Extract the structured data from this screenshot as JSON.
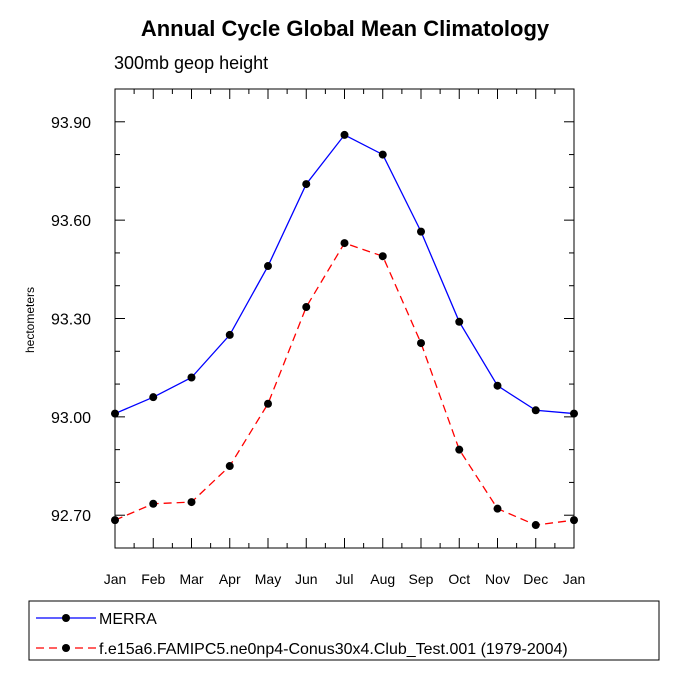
{
  "chart_data": {
    "type": "line",
    "title": "Annual Cycle Global Mean Climatology",
    "subtitle": "300mb geop height",
    "ylabel": "hectometers",
    "xlabel": "",
    "categories": [
      "Jan",
      "Feb",
      "Mar",
      "Apr",
      "May",
      "Jun",
      "Jul",
      "Aug",
      "Sep",
      "Oct",
      "Nov",
      "Dec",
      "Jan"
    ],
    "ylim": [
      92.6,
      94.0
    ],
    "yticks": [
      "92.70",
      "93.00",
      "93.30",
      "93.60",
      "93.90"
    ],
    "legend_position": "bottom",
    "series": [
      {
        "name": "MERRA",
        "color": "#0000ff",
        "dash": "solid",
        "values": [
          93.01,
          93.06,
          93.12,
          93.25,
          93.46,
          93.71,
          93.86,
          93.8,
          93.565,
          93.29,
          93.095,
          93.02,
          93.01
        ]
      },
      {
        "name": "f.e15a6.FAMIPC5.ne0np4-Conus30x4.Club_Test.001 (1979-2004)",
        "color": "#ff0000",
        "dash": "dashed",
        "values": [
          92.685,
          92.735,
          92.74,
          92.85,
          93.04,
          93.335,
          93.53,
          93.49,
          93.225,
          92.9,
          92.72,
          92.67,
          92.685
        ]
      }
    ]
  }
}
